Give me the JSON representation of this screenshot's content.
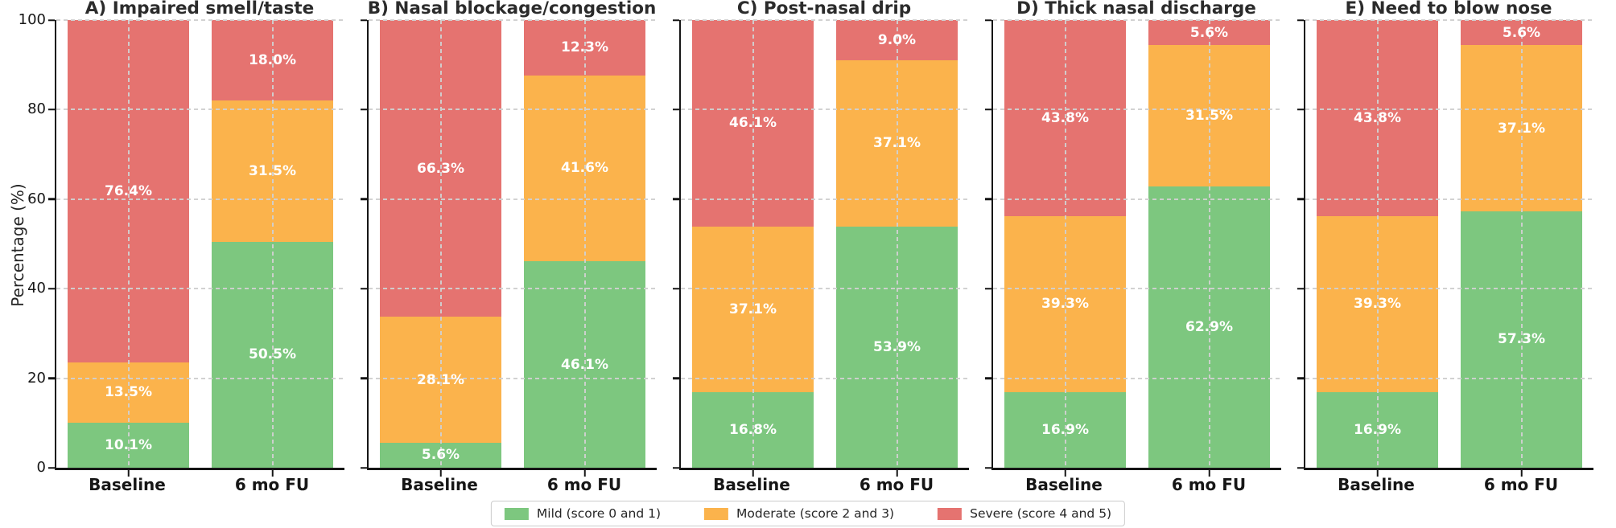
{
  "figure": {
    "ylabel": "Percentage (%)",
    "background": "#ffffff"
  },
  "colors": {
    "mild": "#7dc77f",
    "moderate": "#fbb34c",
    "severe": "#e57370",
    "axis": "#161616",
    "grid": "#d0d0d0",
    "title_text": "#2b2b2b",
    "label_text": "#ffffff"
  },
  "legend": {
    "items": [
      {
        "label": "Mild (score 0 and 1)",
        "color_key": "mild"
      },
      {
        "label": "Moderate (score 2 and 3)",
        "color_key": "moderate"
      },
      {
        "label": "Severe (score 4 and 5)",
        "color_key": "severe"
      }
    ]
  },
  "chart_data": [
    {
      "type": "bar",
      "stacked": true,
      "panel": "A",
      "title": "A) Impaired smell/taste",
      "categories": [
        "Baseline",
        "6 mo FU"
      ],
      "ylim": [
        0,
        100
      ],
      "yticks": [
        0,
        20,
        40,
        60,
        80,
        100
      ],
      "grid": true,
      "show_y_tick_labels": true,
      "series": [
        {
          "name": "Mild (score 0 and 1)",
          "color_key": "mild",
          "values": [
            10.1,
            50.5
          ],
          "labels": [
            "10.1%",
            "50.5%"
          ]
        },
        {
          "name": "Moderate (score 2 and 3)",
          "color_key": "moderate",
          "values": [
            13.5,
            31.5
          ],
          "labels": [
            "13.5%",
            "31.5%"
          ]
        },
        {
          "name": "Severe (score 4 and 5)",
          "color_key": "severe",
          "values": [
            76.4,
            18.0
          ],
          "labels": [
            "76.4%",
            "18.0%"
          ]
        }
      ]
    },
    {
      "type": "bar",
      "stacked": true,
      "panel": "B",
      "title": "B) Nasal blockage/congestion",
      "categories": [
        "Baseline",
        "6 mo FU"
      ],
      "ylim": [
        0,
        100
      ],
      "yticks": [
        0,
        20,
        40,
        60,
        80,
        100
      ],
      "grid": true,
      "show_y_tick_labels": false,
      "series": [
        {
          "name": "Mild (score 0 and 1)",
          "color_key": "mild",
          "values": [
            5.6,
            46.1
          ],
          "labels": [
            "5.6%",
            "46.1%"
          ]
        },
        {
          "name": "Moderate (score 2 and 3)",
          "color_key": "moderate",
          "values": [
            28.1,
            41.6
          ],
          "labels": [
            "28.1%",
            "41.6%"
          ]
        },
        {
          "name": "Severe (score 4 and 5)",
          "color_key": "severe",
          "values": [
            66.3,
            12.3
          ],
          "labels": [
            "66.3%",
            "12.3%"
          ]
        }
      ]
    },
    {
      "type": "bar",
      "stacked": true,
      "panel": "C",
      "title": "C) Post-nasal drip",
      "categories": [
        "Baseline",
        "6 mo FU"
      ],
      "ylim": [
        0,
        100
      ],
      "yticks": [
        0,
        20,
        40,
        60,
        80,
        100
      ],
      "grid": true,
      "show_y_tick_labels": false,
      "series": [
        {
          "name": "Mild (score 0 and 1)",
          "color_key": "mild",
          "values": [
            16.8,
            53.9
          ],
          "labels": [
            "16.8%",
            "53.9%"
          ]
        },
        {
          "name": "Moderate (score 2 and 3)",
          "color_key": "moderate",
          "values": [
            37.1,
            37.1
          ],
          "labels": [
            "37.1%",
            "37.1%"
          ]
        },
        {
          "name": "Severe (score 4 and 5)",
          "color_key": "severe",
          "values": [
            46.1,
            9.0
          ],
          "labels": [
            "46.1%",
            "9.0%"
          ]
        }
      ]
    },
    {
      "type": "bar",
      "stacked": true,
      "panel": "D",
      "title": "D) Thick nasal discharge",
      "categories": [
        "Baseline",
        "6 mo FU"
      ],
      "ylim": [
        0,
        100
      ],
      "yticks": [
        0,
        20,
        40,
        60,
        80,
        100
      ],
      "grid": true,
      "show_y_tick_labels": false,
      "series": [
        {
          "name": "Mild (score 0 and 1)",
          "color_key": "mild",
          "values": [
            16.9,
            62.9
          ],
          "labels": [
            "16.9%",
            "62.9%"
          ]
        },
        {
          "name": "Moderate (score 2 and 3)",
          "color_key": "moderate",
          "values": [
            39.3,
            31.5
          ],
          "labels": [
            "39.3%",
            "31.5%"
          ]
        },
        {
          "name": "Severe (score 4 and 5)",
          "color_key": "severe",
          "values": [
            43.8,
            5.6
          ],
          "labels": [
            "43.8%",
            "5.6%"
          ]
        }
      ]
    },
    {
      "type": "bar",
      "stacked": true,
      "panel": "E",
      "title": "E) Need to blow nose",
      "categories": [
        "Baseline",
        "6 mo FU"
      ],
      "ylim": [
        0,
        100
      ],
      "yticks": [
        0,
        20,
        40,
        60,
        80,
        100
      ],
      "grid": true,
      "show_y_tick_labels": false,
      "series": [
        {
          "name": "Mild (score 0 and 1)",
          "color_key": "mild",
          "values": [
            16.9,
            57.3
          ],
          "labels": [
            "16.9%",
            "57.3%"
          ]
        },
        {
          "name": "Moderate (score 2 and 3)",
          "color_key": "moderate",
          "values": [
            39.3,
            37.1
          ],
          "labels": [
            "39.3%",
            "37.1%"
          ]
        },
        {
          "name": "Severe (score 4 and 5)",
          "color_key": "severe",
          "values": [
            43.8,
            5.6
          ],
          "labels": [
            "43.8%",
            "5.6%"
          ]
        }
      ]
    }
  ]
}
